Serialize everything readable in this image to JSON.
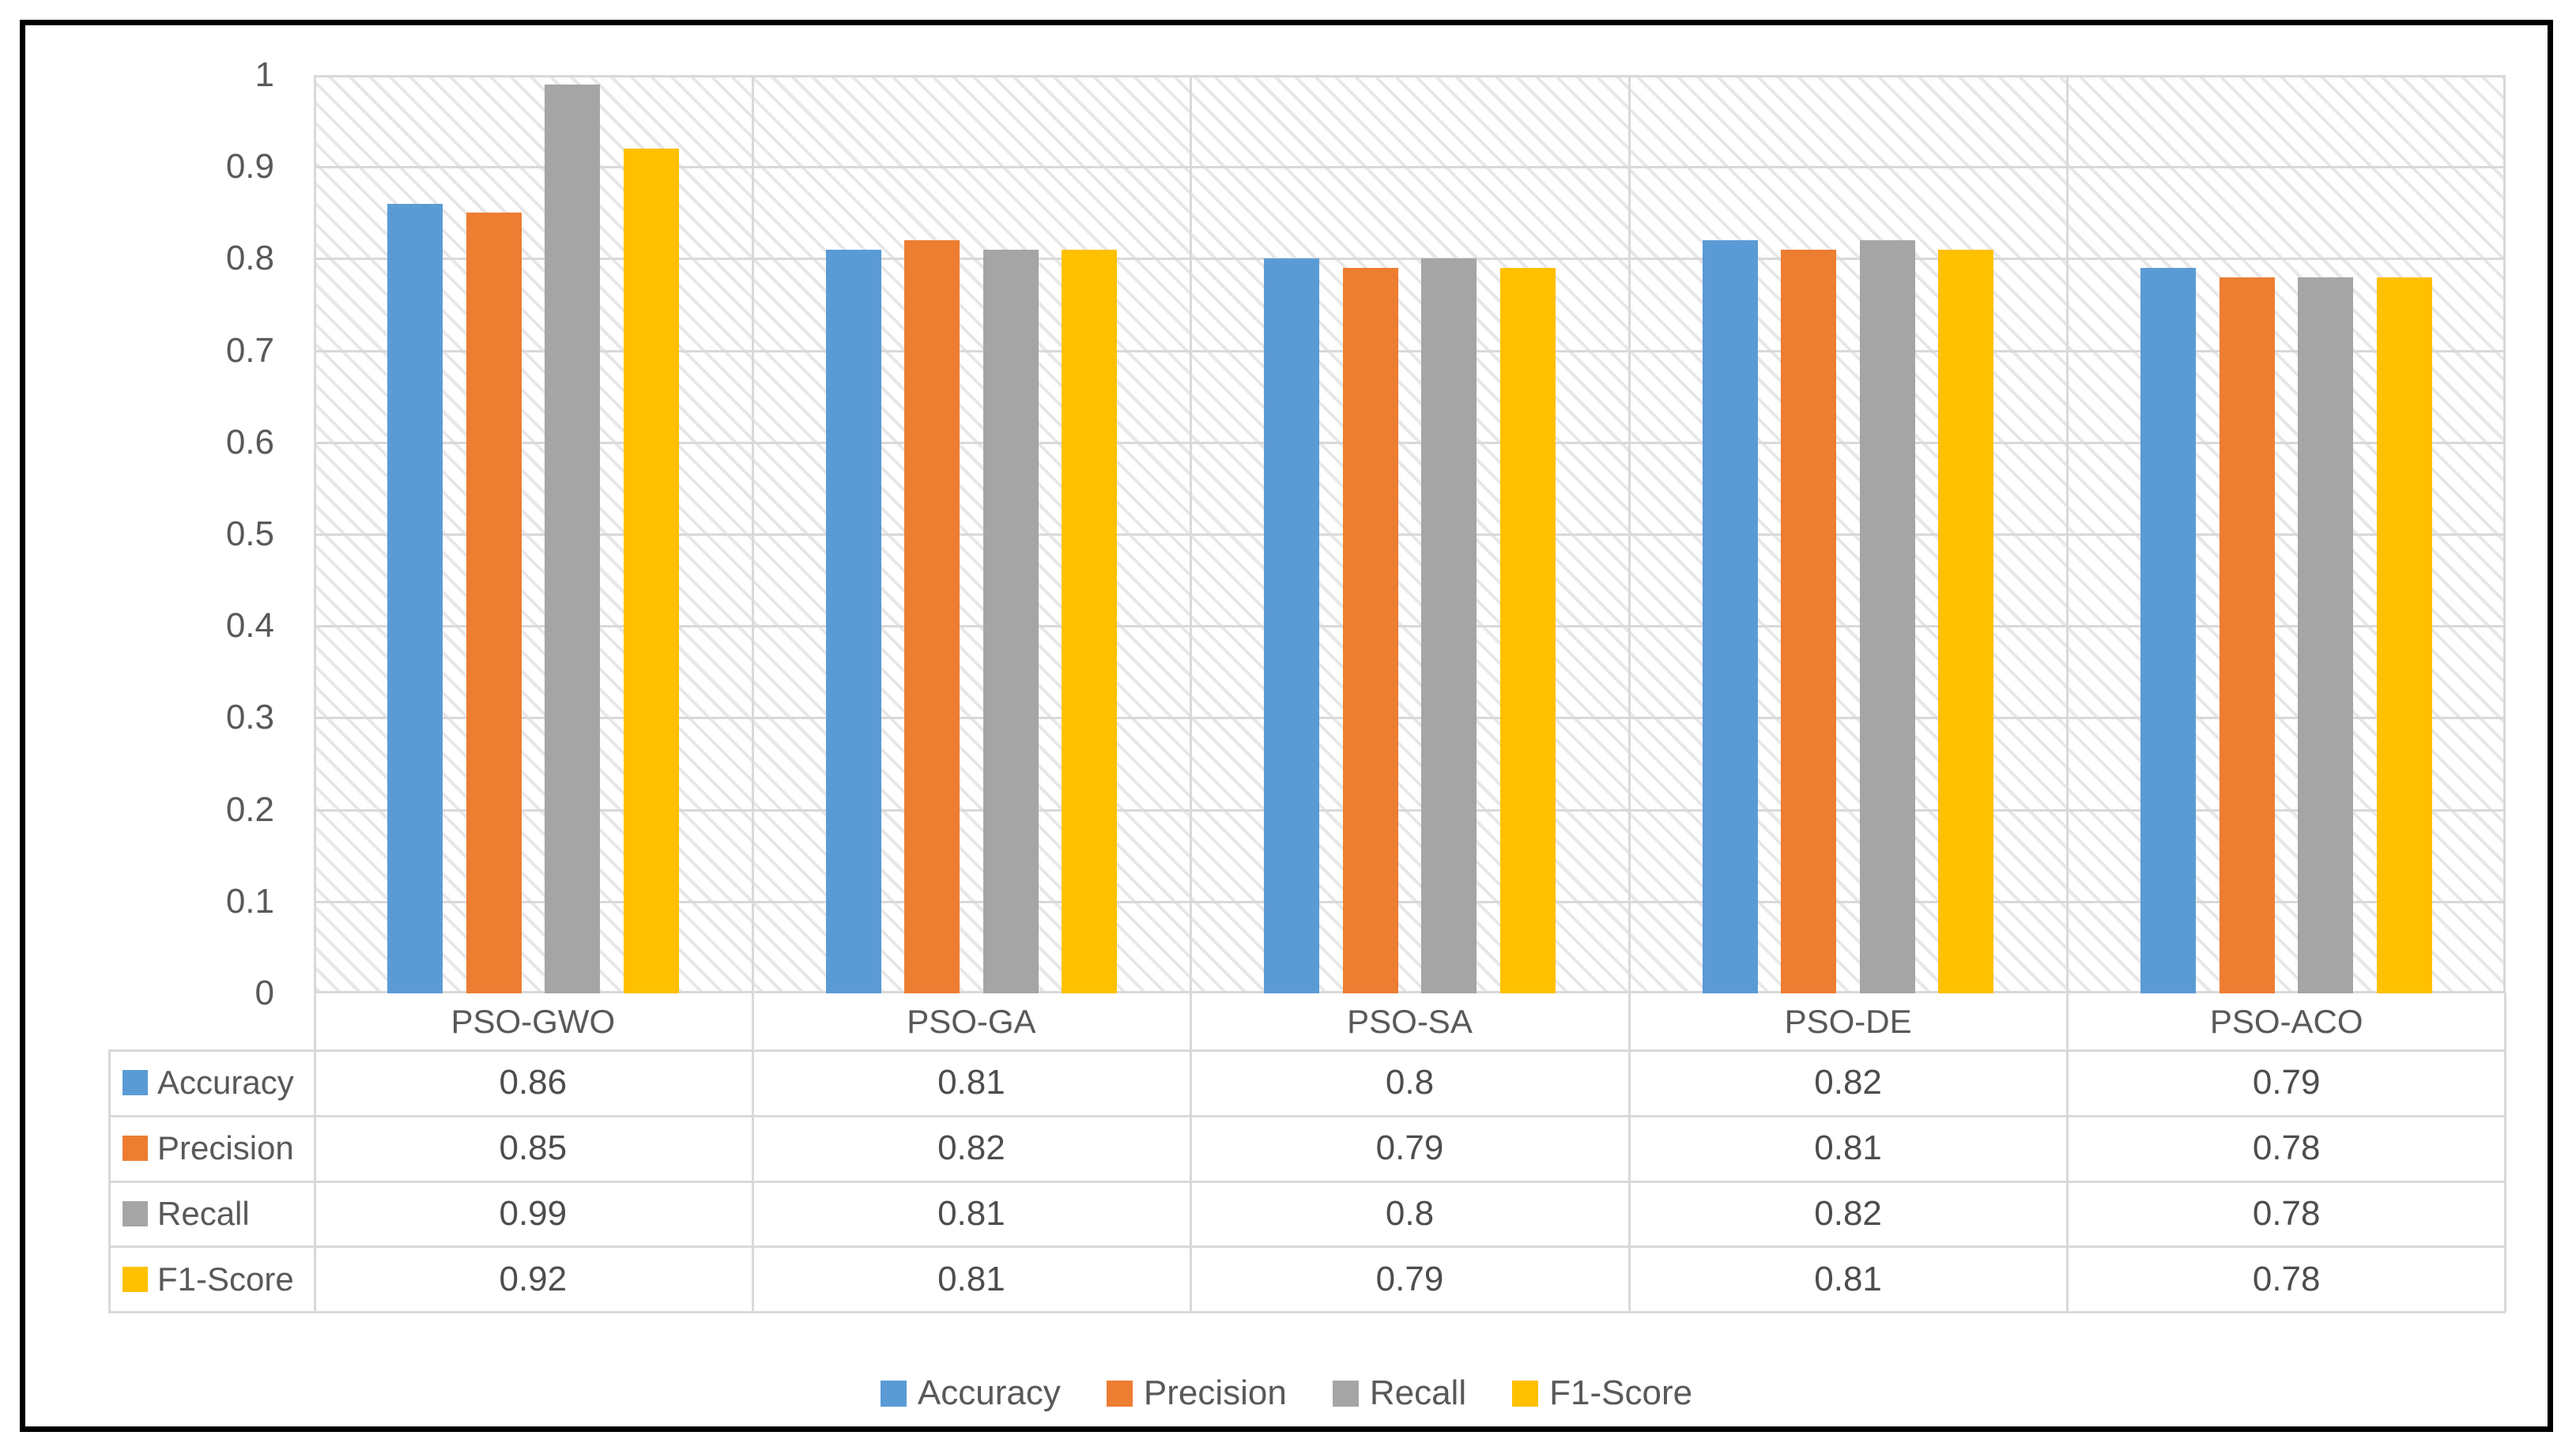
{
  "chart_data": {
    "type": "bar",
    "title": "",
    "categories": [
      "PSO-GWO",
      "PSO-GA",
      "PSO-SA",
      "PSO-DE",
      "PSO-ACO"
    ],
    "series": [
      {
        "name": "Accuracy",
        "color": "#5B9BD5",
        "values": [
          0.86,
          0.81,
          0.8,
          0.82,
          0.79
        ]
      },
      {
        "name": "Precision",
        "color": "#ED7D31",
        "values": [
          0.85,
          0.82,
          0.79,
          0.81,
          0.78
        ]
      },
      {
        "name": "Recall",
        "color": "#A5A5A5",
        "values": [
          0.99,
          0.81,
          0.8,
          0.82,
          0.78
        ]
      },
      {
        "name": "F1-Score",
        "color": "#FFC000",
        "values": [
          0.92,
          0.81,
          0.79,
          0.81,
          0.78
        ]
      }
    ],
    "y_axis": {
      "min": 0,
      "max": 1,
      "step": 0.1,
      "tick_labels": [
        "1",
        "0.9",
        "0.8",
        "0.7",
        "0.6",
        "0.5",
        "0.4",
        "0.3",
        "0.2",
        "0.1",
        "0"
      ]
    },
    "grid": true,
    "plot_fill_pattern": "light-diagonal-hatch",
    "legend_position": "bottom",
    "data_table_shown": true,
    "colors": {
      "text": "#595959",
      "gridline": "#d9d9d9",
      "table_border": "#d9d9d9",
      "outer_border": "#000000",
      "hatch": "#e7e7e7"
    }
  }
}
